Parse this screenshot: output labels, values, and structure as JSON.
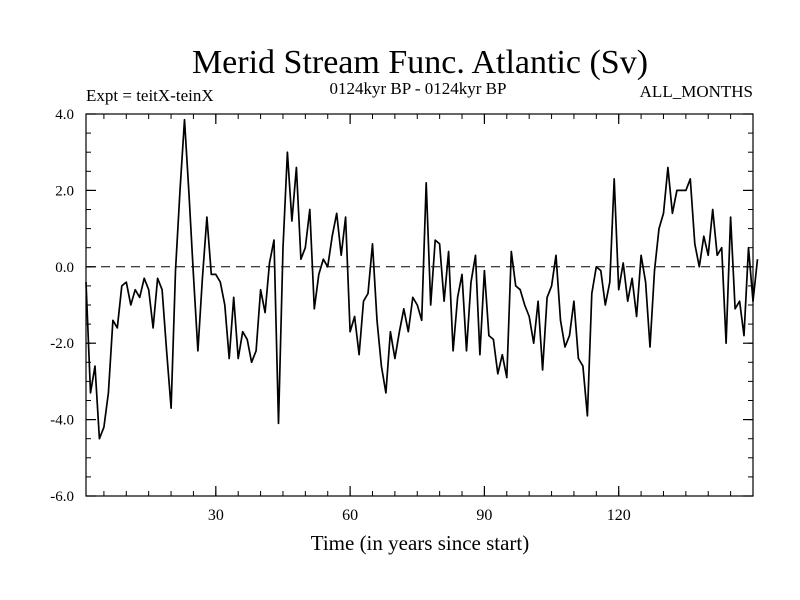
{
  "chart_data": {
    "type": "line",
    "title": "Merid Stream Func. Atlantic (Sv)",
    "subtitle_left": "Expt = teitX-teinX",
    "subtitle_center": "0124kyr BP - 0124kyr BP",
    "subtitle_right": "ALL_MONTHS",
    "xlabel": "Time (in years since start)",
    "ylabel": "",
    "xlim": [
      1,
      150
    ],
    "ylim": [
      -6,
      4
    ],
    "x_ticks": [
      30,
      60,
      90,
      120
    ],
    "x_tick_labels": [
      "30",
      "60",
      "90",
      "120"
    ],
    "y_ticks": [
      -6,
      -4,
      -2,
      0,
      2,
      4
    ],
    "y_tick_labels": [
      "-6.0",
      "-4.0",
      "-2.0",
      "0.0",
      "2.0",
      "4.0"
    ],
    "zero_line": true,
    "series": [
      {
        "name": "teitX-teinX",
        "color": "#000000",
        "x_start": 1,
        "x_step": 1,
        "values": [
          -0.4,
          -3.3,
          -2.6,
          -4.5,
          -4.2,
          -3.3,
          -1.4,
          -1.6,
          -0.5,
          -0.4,
          -1.0,
          -0.6,
          -0.8,
          -0.3,
          -0.6,
          -1.6,
          -0.3,
          -0.6,
          -2.2,
          -3.7,
          -0.1,
          2.0,
          3.85,
          1.9,
          -0.2,
          -2.2,
          -0.3,
          1.3,
          -0.2,
          -0.2,
          -0.4,
          -1.0,
          -2.4,
          -0.8,
          -2.4,
          -1.7,
          -1.9,
          -2.5,
          -2.2,
          -0.6,
          -1.2,
          0.1,
          0.7,
          -4.1,
          0.5,
          3.0,
          1.2,
          2.6,
          0.2,
          0.5,
          1.5,
          -1.1,
          -0.2,
          0.2,
          0.0,
          0.8,
          1.4,
          0.3,
          1.3,
          -1.7,
          -1.3,
          -2.3,
          -0.9,
          -0.7,
          0.6,
          -1.4,
          -2.6,
          -3.3,
          -1.7,
          -2.4,
          -1.7,
          -1.1,
          -1.7,
          -0.8,
          -1.0,
          -1.4,
          2.2,
          -1.0,
          0.7,
          0.6,
          -0.9,
          0.4,
          -2.2,
          -0.8,
          -0.2,
          -2.2,
          -0.4,
          0.3,
          -2.3,
          -0.1,
          -1.8,
          -1.9,
          -2.8,
          -2.3,
          -2.9,
          0.4,
          -0.5,
          -0.6,
          -1.0,
          -1.3,
          -2.0,
          -0.9,
          -2.7,
          -0.8,
          -0.5,
          0.3,
          -1.4,
          -2.1,
          -1.8,
          -0.9,
          -2.4,
          -2.6,
          -3.9,
          -0.7,
          0.0,
          -0.1,
          -1.0,
          -0.4,
          2.3,
          -0.6,
          0.1,
          -0.9,
          -0.3,
          -1.3,
          0.3,
          -0.4,
          -2.1,
          -0.1,
          1.0,
          1.4,
          2.6,
          1.4,
          2.0,
          2.0,
          2.0,
          2.3,
          0.6,
          0.0,
          0.8,
          0.3,
          1.5,
          0.3,
          0.5,
          -2.0,
          1.3,
          -1.1,
          -0.9,
          -1.8,
          0.5,
          -0.9,
          0.2
        ]
      }
    ]
  }
}
